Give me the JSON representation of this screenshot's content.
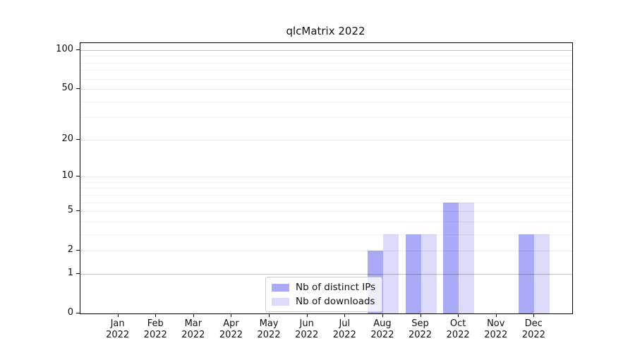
{
  "chart_data": {
    "type": "bar",
    "title": "qlcMatrix 2022",
    "categories": [
      "Jan",
      "Feb",
      "Mar",
      "Apr",
      "May",
      "Jun",
      "Jul",
      "Aug",
      "Sep",
      "Oct",
      "Nov",
      "Dec"
    ],
    "category_year": "2022",
    "series": [
      {
        "name": "Nb of distinct IPs",
        "color": "#aaaaf7",
        "values": [
          0,
          0,
          0,
          0,
          0,
          0,
          0,
          2,
          3,
          6,
          0,
          3
        ]
      },
      {
        "name": "Nb of downloads",
        "color": "#dcdcfa",
        "values": [
          0,
          0,
          0,
          0,
          0,
          0,
          0,
          3,
          3,
          6,
          0,
          3
        ]
      }
    ],
    "yscale": "log1p",
    "ylim": [
      0,
      113
    ],
    "yticks": [
      0,
      1,
      2,
      5,
      10,
      20,
      50,
      100
    ],
    "minor_gridlines": [
      3,
      4,
      6,
      7,
      8,
      9,
      30,
      40,
      60,
      70,
      80,
      90
    ],
    "grid": true,
    "legend_position": "lower center",
    "colors": {
      "axis": "#000000",
      "grid_minor": "rgba(0,0,0,0.05)",
      "grid_major": "rgba(0,0,0,0.09)",
      "grid_emphasis": "rgba(0,0,0,0.24)",
      "text": "#111111"
    }
  }
}
